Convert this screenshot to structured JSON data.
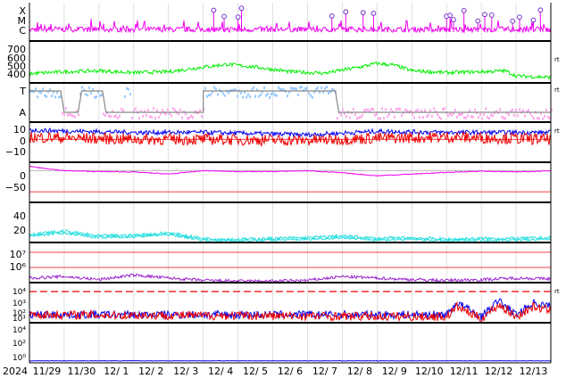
{
  "colors": {
    "magenta": "#ee00ee",
    "green": "#00ee00",
    "lightblue": "#99ccff",
    "pink": "#ffaaee",
    "gray": "#888888",
    "blue": "#0000ee",
    "red": "#ee0000",
    "cyan": "#22dddd",
    "purple": "#9922cc",
    "marker": "#7733cc",
    "grid": "#cccccc",
    "divider": "#000000"
  },
  "x_axis": {
    "year_label": "2024",
    "ticks": [
      "11/29",
      "11/30",
      "12/ 1",
      "12/ 2",
      "12/ 3",
      "12/ 4",
      "12/ 5",
      "12/ 6",
      "12/ 7",
      "12/ 8",
      "12/ 9",
      "12/10",
      "12/11",
      "12/12",
      "12/13"
    ]
  },
  "chart_data": [
    {
      "type": "bar",
      "panel": "flare-class",
      "ytick_labels": [
        "X",
        "M",
        "C"
      ],
      "markers_at_day_index": [
        5.3,
        5.6,
        6.0,
        6.1,
        8.7,
        9.1,
        9.6,
        9.9,
        12.0,
        12.1,
        12.2,
        12.5,
        12.9,
        13.1,
        13.3,
        13.9,
        14.1,
        14.5,
        14.7
      ],
      "color_key": "magenta"
    },
    {
      "type": "line",
      "panel": "solar-wind-speed",
      "ytick_labels": [
        "700",
        "600",
        "500",
        "400"
      ],
      "ylim": [
        300,
        750
      ],
      "profile": [
        [
          0,
          400
        ],
        [
          1,
          420
        ],
        [
          2,
          430
        ],
        [
          3,
          410
        ],
        [
          4,
          420
        ],
        [
          5,
          470
        ],
        [
          5.7,
          500
        ],
        [
          6.5,
          470
        ],
        [
          7.5,
          420
        ],
        [
          8.5,
          405
        ],
        [
          9.5,
          470
        ],
        [
          10,
          510
        ],
        [
          10.5,
          490
        ],
        [
          11,
          430
        ],
        [
          12,
          410
        ],
        [
          13,
          420
        ],
        [
          13.7,
          430
        ],
        [
          14,
          375
        ],
        [
          15,
          360
        ]
      ],
      "color_key": "green",
      "side_tag": "rt"
    },
    {
      "type": "line",
      "panel": "imf-sector",
      "ytick_labels": [
        "T",
        "A"
      ],
      "side_tag": "rt",
      "colors": [
        "lightblue",
        "pink",
        "gray"
      ]
    },
    {
      "type": "line",
      "panel": "imf-bt-bz",
      "ytick_labels": [
        "10",
        "0",
        "−10"
      ],
      "ylim": [
        -20,
        15
      ],
      "series": [
        {
          "color_key": "blue",
          "profile": [
            [
              0,
              8
            ],
            [
              3,
              6
            ],
            [
              5,
              6
            ],
            [
              8,
              4
            ],
            [
              10,
              7
            ],
            [
              12,
              6
            ],
            [
              15,
              6
            ]
          ]
        },
        {
          "color_key": "red",
          "profile": [
            [
              0,
              2
            ],
            [
              3,
              0
            ],
            [
              5,
              0
            ],
            [
              8,
              -1
            ],
            [
              10,
              1
            ],
            [
              12,
              2
            ],
            [
              15,
              0
            ]
          ]
        }
      ],
      "side_tag": "rt"
    },
    {
      "type": "line",
      "panel": "dst",
      "ytick_labels": [
        "0",
        "−50"
      ],
      "ylim": [
        -75,
        20
      ],
      "profile": [
        [
          0,
          10
        ],
        [
          1,
          0
        ],
        [
          2,
          -2
        ],
        [
          3,
          -3
        ],
        [
          4,
          -8
        ],
        [
          5,
          0
        ],
        [
          6,
          -2
        ],
        [
          7,
          -2
        ],
        [
          8,
          0
        ],
        [
          9,
          -5
        ],
        [
          10,
          -12
        ],
        [
          11,
          -8
        ],
        [
          12,
          -4
        ],
        [
          13,
          -1
        ],
        [
          14,
          -3
        ],
        [
          15,
          0
        ]
      ],
      "color_key": "magenta"
    },
    {
      "type": "line",
      "panel": "ae-index",
      "ytick_labels": [
        "40",
        "20"
      ],
      "ylim": [
        0,
        50
      ],
      "profile": [
        [
          0,
          10
        ],
        [
          1,
          14
        ],
        [
          2,
          8
        ],
        [
          3,
          9
        ],
        [
          4,
          12
        ],
        [
          5,
          5
        ],
        [
          6,
          4
        ],
        [
          7,
          5
        ],
        [
          8,
          6
        ],
        [
          9,
          8
        ],
        [
          10,
          5
        ],
        [
          11,
          6
        ],
        [
          12,
          4
        ],
        [
          13,
          5
        ],
        [
          14,
          5
        ],
        [
          15,
          6
        ]
      ],
      "color_key": "cyan"
    },
    {
      "type": "line",
      "panel": "electron-flux",
      "ytick_labels": [
        "10⁷",
        "10⁶"
      ],
      "profile": [
        [
          0,
          0.3
        ],
        [
          1,
          0.4
        ],
        [
          2,
          0.2
        ],
        [
          3,
          0.5
        ],
        [
          4,
          0.3
        ],
        [
          5,
          0.15
        ],
        [
          6,
          0.1
        ],
        [
          7,
          0.1
        ],
        [
          8,
          0.15
        ],
        [
          9,
          0.4
        ],
        [
          10,
          0.3
        ],
        [
          11,
          0.2
        ],
        [
          12,
          0.15
        ],
        [
          13,
          0.2
        ],
        [
          14,
          0.3
        ],
        [
          15,
          0.25
        ]
      ],
      "color_key": "purple"
    },
    {
      "type": "line",
      "panel": "proton-flux",
      "ytick_labels": [
        "10⁴",
        "10³",
        "10²",
        "10¹"
      ],
      "series": [
        {
          "color_key": "blue",
          "profile": [
            [
              0,
              0.2
            ],
            [
              12,
              0.2
            ],
            [
              12.3,
              0.5
            ],
            [
              13,
              0.15
            ],
            [
              13.5,
              0.55
            ],
            [
              14,
              0.2
            ],
            [
              14.5,
              0.5
            ],
            [
              15,
              0.4
            ]
          ]
        },
        {
          "color_key": "red",
          "profile": [
            [
              0,
              0.2
            ],
            [
              12,
              0.15
            ],
            [
              12.3,
              0.4
            ],
            [
              13,
              0.1
            ],
            [
              13.5,
              0.45
            ],
            [
              14,
              0.15
            ],
            [
              14.5,
              0.4
            ],
            [
              15,
              0.3
            ]
          ]
        }
      ],
      "side_tag": "rt"
    },
    {
      "type": "line",
      "panel": "extra-flux",
      "ytick_labels": [
        "10⁴",
        "10²",
        "10⁰"
      ],
      "profile": [
        [
          0,
          0.05
        ],
        [
          15,
          0.05
        ]
      ],
      "color_key": "blue"
    }
  ]
}
